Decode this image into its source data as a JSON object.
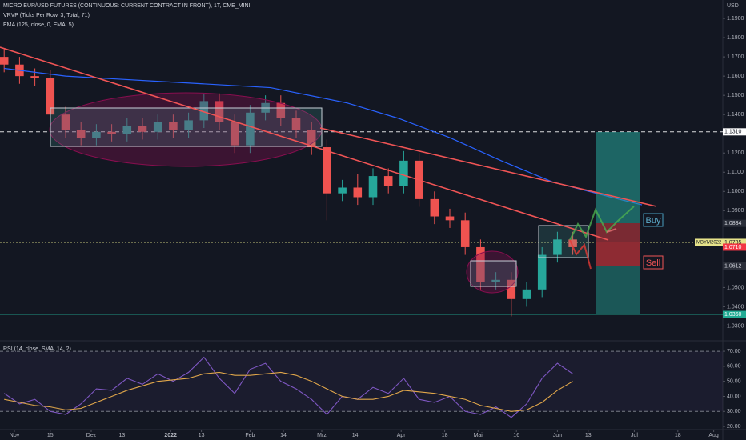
{
  "chart_data": [
    {
      "type": "candlestick",
      "title": "MICRO EUR/USD FUTURES (CONTINUOUS: CURRENT CONTRACT IN FRONT), 1T, CME_MINI",
      "indicators": [
        "VRVP (Ticks Per Row, 3, Total, 71)",
        "EMA (125, close, 0, EMA, 5)"
      ],
      "y_unit": "USD",
      "xlim": [
        -5.625,
        276.56
      ],
      "xticks": [
        {
          "value": 0,
          "label": "Nov"
        },
        {
          "value": 14,
          "label": "15"
        },
        {
          "value": 30,
          "label": "Dez"
        },
        {
          "value": 42,
          "label": "13"
        },
        {
          "value": 61,
          "label": "2022"
        },
        {
          "value": 73,
          "label": "13"
        },
        {
          "value": 92,
          "label": "Feb"
        },
        {
          "value": 105,
          "label": "14"
        },
        {
          "value": 120,
          "label": "Mrz"
        },
        {
          "value": 133,
          "label": "14"
        },
        {
          "value": 151,
          "label": "Apr"
        },
        {
          "value": 168,
          "label": "18"
        },
        {
          "value": 181,
          "label": "Mai"
        },
        {
          "value": 196,
          "label": "16"
        },
        {
          "value": 212,
          "label": "Jun"
        },
        {
          "value": 224,
          "label": "13"
        },
        {
          "value": 242,
          "label": "Jul"
        },
        {
          "value": 259,
          "label": "18"
        },
        {
          "value": 273,
          "label": "Aug"
        }
      ],
      "ylim": [
        1.0227,
        1.1996
      ],
      "yticks": [
        {
          "value": 1.19,
          "label": "1.1900"
        },
        {
          "value": 1.18,
          "label": "1.1800"
        },
        {
          "value": 1.17,
          "label": "1.1700"
        },
        {
          "value": 1.16,
          "label": "1.1600"
        },
        {
          "value": 1.15,
          "label": "1.1500"
        },
        {
          "value": 1.14,
          "label": "1.1400"
        },
        {
          "value": 1.12,
          "label": "1.1200"
        },
        {
          "value": 1.11,
          "label": "1.1100"
        },
        {
          "value": 1.1,
          "label": "1.1000"
        },
        {
          "value": 1.09,
          "label": "1.0900"
        },
        {
          "value": 1.05,
          "label": "1.0500"
        },
        {
          "value": 1.04,
          "label": "1.0400"
        },
        {
          "value": 1.03,
          "label": "1.0300"
        }
      ],
      "up_color": "#26a69a",
      "down_color": "#ef5350",
      "candles": {
        "x": [
          -4,
          2,
          8,
          14,
          20,
          26,
          32,
          38,
          44,
          50,
          56,
          62,
          68,
          74,
          80,
          86,
          92,
          98,
          104,
          110,
          116,
          122,
          128,
          134,
          140,
          146,
          152,
          158,
          164,
          170,
          176,
          182,
          188,
          194,
          200,
          206,
          212,
          218
        ],
        "open": [
          1.17,
          1.166,
          1.16,
          1.159,
          1.14,
          1.132,
          1.128,
          1.131,
          1.13,
          1.134,
          1.131,
          1.136,
          1.132,
          1.137,
          1.147,
          1.136,
          1.124,
          1.141,
          1.146,
          1.138,
          1.132,
          1.123,
          1.099,
          1.102,
          1.097,
          1.108,
          1.103,
          1.116,
          1.096,
          1.087,
          1.085,
          1.071,
          1.053,
          1.054,
          1.044,
          1.049,
          1.067,
          1.075
        ],
        "high": [
          1.174,
          1.17,
          1.164,
          1.163,
          1.144,
          1.136,
          1.135,
          1.135,
          1.138,
          1.138,
          1.14,
          1.14,
          1.141,
          1.151,
          1.151,
          1.14,
          1.145,
          1.15,
          1.15,
          1.142,
          1.136,
          1.127,
          1.106,
          1.109,
          1.112,
          1.112,
          1.121,
          1.12,
          1.1,
          1.091,
          1.089,
          1.075,
          1.058,
          1.058,
          1.053,
          1.071,
          1.079,
          1.079
        ],
        "low": [
          1.162,
          1.156,
          1.155,
          1.136,
          1.128,
          1.124,
          1.124,
          1.126,
          1.126,
          1.127,
          1.127,
          1.128,
          1.128,
          1.133,
          1.132,
          1.12,
          1.12,
          1.137,
          1.134,
          1.128,
          1.119,
          1.085,
          1.095,
          1.093,
          1.093,
          1.099,
          1.099,
          1.092,
          1.083,
          1.081,
          1.067,
          1.049,
          1.049,
          1.035,
          1.04,
          1.045,
          1.063,
          1.067
        ],
        "close": [
          1.166,
          1.16,
          1.159,
          1.14,
          1.132,
          1.128,
          1.131,
          1.13,
          1.134,
          1.131,
          1.136,
          1.132,
          1.137,
          1.147,
          1.136,
          1.124,
          1.141,
          1.146,
          1.138,
          1.132,
          1.123,
          1.099,
          1.102,
          1.097,
          1.108,
          1.103,
          1.116,
          1.096,
          1.087,
          1.085,
          1.071,
          1.053,
          1.054,
          1.044,
          1.049,
          1.067,
          1.075,
          1.071
        ]
      },
      "ema": {
        "color": "#2962ff",
        "x": [
          -4,
          20,
          60,
          100,
          130,
          150,
          170,
          190,
          210,
          230,
          245
        ],
        "values": [
          1.164,
          1.16,
          1.157,
          1.154,
          1.146,
          1.138,
          1.128,
          1.116,
          1.105,
          1.098,
          1.093
        ]
      },
      "price_levels": [
        {
          "value": 1.131,
          "label": "1.1310",
          "color": "#ffffff",
          "text_color": "#131722",
          "line": "dashed"
        },
        {
          "value": 1.0834,
          "label": "1.0834",
          "color": "#2a2e39",
          "text_color": "#d1d4dc"
        },
        {
          "value": 1.0735,
          "label": "1.0735",
          "name": "MBYM2022",
          "color": "#e6e38a",
          "text_color": "#131722",
          "line": "dotted"
        },
        {
          "value": 1.071,
          "label": "1.0710",
          "color": "#f23645",
          "text_color": "#ffffff"
        },
        {
          "value": 1.0612,
          "label": "1.0612",
          "color": "#2a2e39",
          "text_color": "#d1d4dc"
        },
        {
          "value": 1.036,
          "label": "1.0360",
          "color": "#22ab94",
          "text_color": "#ffffff",
          "line": "solid"
        }
      ],
      "annotations": [
        "Buy",
        "Sell"
      ]
    },
    {
      "type": "line",
      "title": "RSI (14, close, SMA, 14, 2)",
      "x": [
        -4,
        2,
        8,
        14,
        20,
        26,
        32,
        38,
        44,
        50,
        56,
        62,
        68,
        74,
        80,
        86,
        92,
        98,
        104,
        110,
        116,
        122,
        128,
        134,
        140,
        146,
        152,
        158,
        164,
        170,
        176,
        182,
        188,
        194,
        200,
        206,
        212,
        218
      ],
      "ylim": [
        17.9,
        75.9
      ],
      "yticks": [
        {
          "value": 70,
          "label": "70.00"
        },
        {
          "value": 60,
          "label": "60.00"
        },
        {
          "value": 50,
          "label": "50.00"
        },
        {
          "value": 40,
          "label": "40.00"
        },
        {
          "value": 30,
          "label": "30.00"
        },
        {
          "value": 20,
          "label": "20.00"
        }
      ],
      "band": [
        30,
        70
      ],
      "series": [
        {
          "color": "#7e57c2",
          "values": [
            42,
            35,
            38,
            30,
            28,
            35,
            45,
            44,
            52,
            48,
            55,
            50,
            56,
            66,
            52,
            42,
            58,
            62,
            50,
            45,
            38,
            28,
            40,
            38,
            46,
            42,
            52,
            38,
            36,
            40,
            30,
            28,
            33,
            26,
            35,
            52,
            62,
            55
          ]
        },
        {
          "color": "#e0a64a",
          "values": [
            38,
            36,
            34,
            33,
            31,
            32,
            36,
            40,
            44,
            47,
            50,
            51,
            52,
            55,
            56,
            54,
            54,
            55,
            56,
            54,
            50,
            45,
            40,
            38,
            38,
            40,
            44,
            43,
            42,
            40,
            38,
            34,
            32,
            30,
            31,
            36,
            44,
            50
          ]
        }
      ]
    }
  ]
}
